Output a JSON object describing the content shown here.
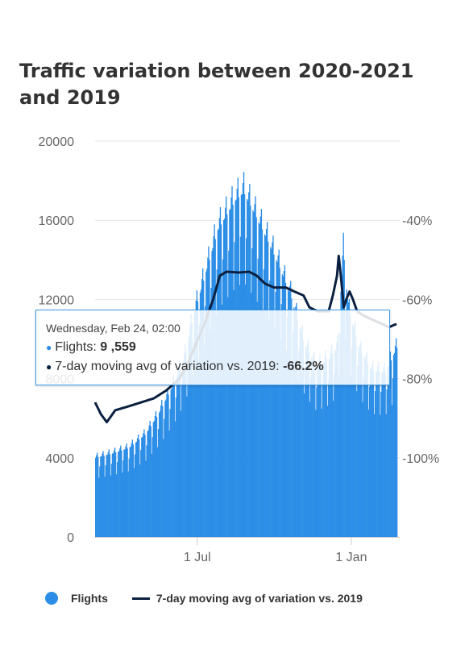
{
  "title": "Traffic variation between 2020-2021 and 2019",
  "colors": {
    "flights": "#2c8ee6",
    "moving_avg": "#0b2040",
    "moving_avg_muted": "#c3c8d0",
    "grid": "#e6e6e6"
  },
  "legend": {
    "flights_label": "Flights",
    "moving_avg_label": "7-day moving avg of variation vs. 2019"
  },
  "tooltip": {
    "header": "Wednesday, Feb 24, 02:00",
    "flights_label": "Flights:",
    "flights_value": "9 ,559",
    "avg_label": "7-day moving avg of variation vs. 2019:",
    "avg_value": "-66.2%"
  },
  "chart_data": {
    "type": "bar",
    "x_start": "2020-03-01",
    "x_end": "2021-02-24",
    "x_tick_labels": [
      {
        "date": "2020-07-01",
        "label": "1 Jul"
      },
      {
        "date": "2021-01-01",
        "label": "1 Jan"
      }
    ],
    "y_left": {
      "min": 0,
      "max": 20000,
      "ticks": [
        0,
        4000,
        8000,
        12000,
        16000,
        20000
      ]
    },
    "y_right": {
      "min": -120,
      "max": -20,
      "ticks": [
        -100,
        -80,
        -60,
        -40
      ],
      "unit": "%"
    },
    "grid": true,
    "legend_position": "bottom",
    "series": [
      {
        "name": "Flights",
        "type": "bar",
        "axis": "left",
        "keypoints": [
          [
            "2020-03-01",
            4000
          ],
          [
            "2020-03-20",
            4200
          ],
          [
            "2020-04-10",
            4500
          ],
          [
            "2020-04-30",
            5200
          ],
          [
            "2020-05-15",
            6200
          ],
          [
            "2020-06-01",
            7600
          ],
          [
            "2020-06-15",
            9000
          ],
          [
            "2020-06-25",
            11000
          ],
          [
            "2020-07-05",
            12500
          ],
          [
            "2020-07-15",
            14000
          ],
          [
            "2020-07-25",
            15500
          ],
          [
            "2020-08-05",
            16300
          ],
          [
            "2020-08-15",
            17000
          ],
          [
            "2020-08-25",
            17400
          ],
          [
            "2020-09-05",
            16500
          ],
          [
            "2020-09-20",
            15200
          ],
          [
            "2020-10-05",
            13800
          ],
          [
            "2020-10-20",
            12200
          ],
          [
            "2020-11-05",
            9800
          ],
          [
            "2020-11-20",
            8600
          ],
          [
            "2020-12-05",
            9000
          ],
          [
            "2020-12-15",
            9600
          ],
          [
            "2020-12-22",
            14500
          ],
          [
            "2020-12-28",
            11500
          ],
          [
            "2021-01-10",
            9500
          ],
          [
            "2021-01-25",
            8400
          ],
          [
            "2021-02-10",
            8300
          ],
          [
            "2021-02-24",
            9559
          ]
        ]
      },
      {
        "name": "7-day moving avg of variation vs. 2019",
        "type": "line",
        "axis": "right",
        "keypoints": [
          [
            "2020-03-01",
            -86
          ],
          [
            "2020-03-08",
            -89
          ],
          [
            "2020-03-15",
            -91
          ],
          [
            "2020-03-25",
            -88
          ],
          [
            "2020-04-10",
            -87
          ],
          [
            "2020-04-25",
            -86
          ],
          [
            "2020-05-10",
            -85
          ],
          [
            "2020-05-25",
            -83
          ],
          [
            "2020-06-10",
            -80
          ],
          [
            "2020-06-20",
            -76
          ],
          [
            "2020-06-30",
            -71
          ],
          [
            "2020-07-10",
            -66
          ],
          [
            "2020-07-20",
            -60
          ],
          [
            "2020-07-28",
            -54
          ],
          [
            "2020-08-05",
            -53
          ],
          [
            "2020-08-20",
            -53.2
          ],
          [
            "2020-09-01",
            -53
          ],
          [
            "2020-09-10",
            -54
          ],
          [
            "2020-09-20",
            -56
          ],
          [
            "2020-10-01",
            -57
          ],
          [
            "2020-10-15",
            -57
          ],
          [
            "2020-10-25",
            -58
          ],
          [
            "2020-11-05",
            -59
          ],
          [
            "2020-11-12",
            -62
          ],
          [
            "2020-11-22",
            -63
          ],
          [
            "2020-12-05",
            -63
          ],
          [
            "2020-12-10",
            -59
          ],
          [
            "2020-12-15",
            -54
          ],
          [
            "2020-12-17",
            -49
          ],
          [
            "2020-12-20",
            -55
          ],
          [
            "2020-12-23",
            -62
          ],
          [
            "2020-12-26",
            -60
          ],
          [
            "2020-12-30",
            -58
          ],
          [
            "2021-01-03",
            -60
          ],
          [
            "2021-01-08",
            -63
          ],
          [
            "2021-01-15",
            -64
          ],
          [
            "2021-01-25",
            -65
          ],
          [
            "2021-02-05",
            -66
          ],
          [
            "2021-02-15",
            -67
          ],
          [
            "2021-02-24",
            -66.2
          ]
        ]
      }
    ]
  }
}
